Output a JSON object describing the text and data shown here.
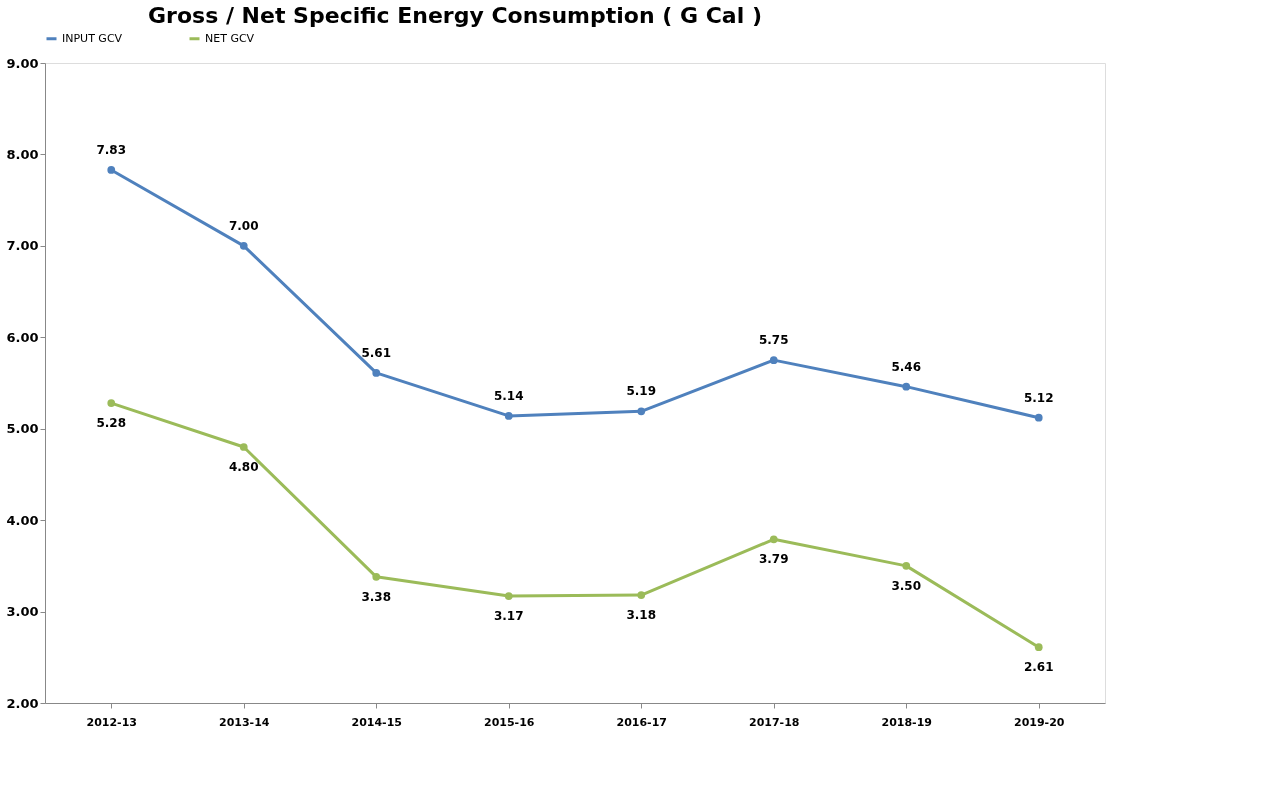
{
  "chart_data": {
    "type": "line",
    "title": "Gross / Net Specific Energy Consumption ( G Cal )",
    "categories": [
      "2012-13",
      "2013-14",
      "2014-15",
      "2015-16",
      "2016-17",
      "2017-18",
      "2018-19",
      "2019-20"
    ],
    "series": [
      {
        "name": "INPUT GCV",
        "color": "#4f81bd",
        "values": [
          7.83,
          7.0,
          5.61,
          5.14,
          5.19,
          5.75,
          5.46,
          5.12
        ],
        "value_labels": [
          "7.83",
          "7.00",
          "5.61",
          "5.14",
          "5.19",
          "5.75",
          "5.46",
          "5.12"
        ]
      },
      {
        "name": "NET GCV",
        "color": "#9bbb59",
        "values": [
          5.28,
          4.8,
          3.38,
          3.17,
          3.18,
          3.79,
          3.5,
          2.61
        ],
        "value_labels": [
          "5.28",
          "4.80",
          "3.38",
          "3.17",
          "3.18",
          "3.79",
          "3.50",
          "2.61"
        ]
      }
    ],
    "ylim": [
      2,
      9
    ],
    "yticks": [
      {
        "value": 2,
        "label": "2.00"
      },
      {
        "value": 3,
        "label": "3.00"
      },
      {
        "value": 4,
        "label": "4.00"
      },
      {
        "value": 5,
        "label": "5.00"
      },
      {
        "value": 6,
        "label": "6.00"
      },
      {
        "value": 7,
        "label": "7.00"
      },
      {
        "value": 8,
        "label": "8.00"
      },
      {
        "value": 9,
        "label": "9.00"
      }
    ],
    "grid": false,
    "legend": "top",
    "marker": "circle",
    "line_style": "solid"
  }
}
